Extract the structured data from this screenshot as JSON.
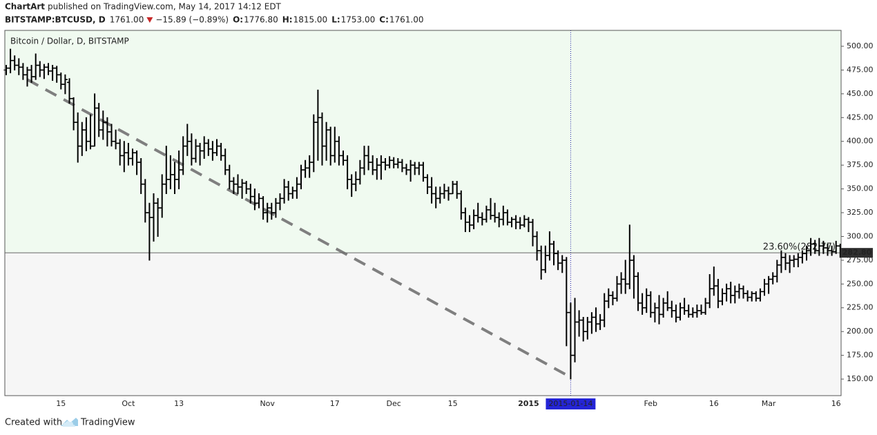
{
  "header": {
    "author": "ChartArt",
    "published": "published on TradingView.com, May 14, 2017 14:12 EDT",
    "symbol": "BITSTAMP:BTCUSD, D",
    "last": "1761.00",
    "change": "−15.89 (−0.89%)",
    "quote": [
      [
        "O:",
        "1776.80"
      ],
      [
        "H:",
        "1815.00"
      ],
      [
        "L:",
        "1753.00"
      ],
      [
        "C:",
        "1761.00"
      ]
    ]
  },
  "footer": {
    "created": "Created with",
    "brand": "TradingView"
  },
  "chart_data": {
    "type": "ohlc",
    "title": "Bitcoin / Dollar, D, BITSTAMP",
    "color": "#000000",
    "up_area_color": "#f0faf0",
    "down_area_color": "#f6f6f6",
    "ylim": [
      132.6,
      516.7
    ],
    "yticks": [
      {
        "value": 150,
        "label": "150.00"
      },
      {
        "value": 175,
        "label": "175.00"
      },
      {
        "value": 200,
        "label": "200.00"
      },
      {
        "value": 225,
        "label": "225.00"
      },
      {
        "value": 250,
        "label": "250.00"
      },
      {
        "value": 275,
        "label": "275.00"
      },
      {
        "value": 300,
        "label": "300.00"
      },
      {
        "value": 325,
        "label": "325.00"
      },
      {
        "value": 350,
        "label": "350.00"
      },
      {
        "value": 375,
        "label": "375.00"
      },
      {
        "value": 400,
        "label": "400.00"
      },
      {
        "value": 425,
        "label": "425.00"
      },
      {
        "value": 450,
        "label": "450.00"
      },
      {
        "value": 475,
        "label": "475.00"
      },
      {
        "value": 500,
        "label": "500.00"
      }
    ],
    "last_price": {
      "value": 282.8,
      "label": "282.80"
    },
    "annotation": "23.60%(282.77)",
    "trendline": {
      "x": [
        5,
        134
      ],
      "y": [
        465,
        152
      ]
    },
    "categories": [
      null,
      null,
      null,
      null,
      null,
      null,
      null,
      null,
      null,
      null,
      null,
      null,
      null,
      "15",
      null,
      null,
      null,
      null,
      null,
      null,
      null,
      null,
      null,
      null,
      null,
      null,
      null,
      null,
      null,
      "Oct",
      null,
      null,
      null,
      null,
      null,
      null,
      null,
      null,
      null,
      null,
      null,
      "13",
      null,
      null,
      null,
      null,
      null,
      null,
      null,
      null,
      null,
      null,
      null,
      null,
      null,
      null,
      null,
      null,
      null,
      null,
      null,
      null,
      "Nov",
      null,
      null,
      null,
      null,
      null,
      null,
      null,
      null,
      null,
      null,
      null,
      null,
      null,
      null,
      null,
      "17",
      null,
      null,
      null,
      null,
      null,
      null,
      null,
      null,
      null,
      null,
      null,
      null,
      null,
      "Dec",
      null,
      null,
      null,
      null,
      null,
      null,
      null,
      null,
      null,
      null,
      null,
      null,
      null,
      "15",
      null,
      null,
      null,
      null,
      null,
      null,
      null,
      null,
      null,
      null,
      null,
      null,
      null,
      null,
      null,
      null,
      null,
      "2015",
      null,
      null,
      null,
      null,
      null,
      null,
      null,
      null,
      null,
      "2015-01-14",
      null,
      null,
      null,
      null,
      null,
      null,
      null,
      null,
      null,
      null,
      null,
      null,
      null,
      null,
      null,
      null,
      null,
      null,
      "Feb",
      null,
      null,
      null,
      null,
      null,
      null,
      null,
      null,
      null,
      null,
      null,
      null,
      null,
      null,
      "16",
      null,
      null,
      null,
      null,
      null,
      null,
      null,
      null,
      null,
      null,
      null,
      null,
      "Mar",
      null,
      null,
      null,
      null,
      null,
      null,
      null,
      null,
      null,
      null,
      null,
      null,
      null,
      null,
      null,
      "16",
      null
    ],
    "open": [
      475,
      477,
      485,
      480,
      478,
      470,
      475,
      468,
      480,
      475,
      478,
      474,
      477,
      470,
      460,
      462,
      445,
      420,
      395,
      412,
      400,
      395,
      435,
      412,
      420,
      410,
      400,
      398,
      385,
      388,
      382,
      388,
      378,
      355,
      325,
      320,
      335,
      330,
      355,
      360,
      365,
      360,
      370,
      395,
      400,
      382,
      395,
      390,
      398,
      392,
      388,
      395,
      385,
      370,
      358,
      355,
      352,
      356,
      350,
      342,
      335,
      340,
      325,
      330,
      325,
      335,
      340,
      352,
      345,
      348,
      355,
      370,
      372,
      378,
      420,
      425,
      395,
      412,
      385,
      400,
      385,
      380,
      360,
      355,
      360,
      372,
      385,
      378,
      370,
      375,
      378,
      375,
      380,
      376,
      378,
      372,
      370,
      375,
      372,
      375,
      362,
      352,
      345,
      340,
      345,
      348,
      345,
      355,
      345,
      325,
      315,
      312,
      322,
      320,
      318,
      328,
      322,
      320,
      318,
      325,
      315,
      318,
      315,
      312,
      318,
      315,
      300,
      285,
      265,
      280,
      292,
      282,
      272,
      275,
      220,
      175,
      210,
      212,
      200,
      210,
      215,
      208,
      212,
      232,
      238,
      235,
      250,
      255,
      250,
      275,
      258,
      230,
      225,
      238,
      220,
      225,
      218,
      230,
      225,
      222,
      215,
      225,
      222,
      218,
      220,
      222,
      220,
      230,
      245,
      248,
      232,
      240,
      245,
      238,
      242,
      245,
      240,
      236,
      240,
      235,
      242,
      250,
      255,
      258,
      270,
      278,
      272,
      275,
      276,
      278,
      282,
      285,
      292,
      285,
      290,
      288,
      285,
      284,
      290
    ],
    "high": [
      480,
      497,
      490,
      487,
      482,
      478,
      480,
      492,
      484,
      481,
      482,
      480,
      479,
      472,
      470,
      466,
      446,
      430,
      420,
      425,
      428,
      450,
      440,
      432,
      425,
      418,
      412,
      402,
      400,
      398,
      392,
      390,
      382,
      360,
      335,
      345,
      340,
      365,
      395,
      385,
      378,
      390,
      405,
      418,
      408,
      402,
      398,
      405,
      402,
      400,
      402,
      398,
      392,
      375,
      362,
      365,
      360,
      358,
      355,
      350,
      345,
      342,
      335,
      335,
      340,
      345,
      360,
      358,
      352,
      362,
      375,
      380,
      385,
      428,
      454,
      430,
      420,
      415,
      415,
      405,
      390,
      385,
      365,
      368,
      380,
      395,
      395,
      385,
      382,
      385,
      382,
      384,
      383,
      382,
      381,
      376,
      380,
      378,
      378,
      378,
      365,
      362,
      352,
      352,
      355,
      352,
      358,
      358,
      348,
      330,
      322,
      328,
      335,
      325,
      332,
      340,
      335,
      325,
      332,
      328,
      320,
      322,
      320,
      322,
      320,
      318,
      305,
      290,
      290,
      305,
      295,
      285,
      280,
      278,
      230,
      235,
      222,
      215,
      215,
      220,
      225,
      218,
      240,
      245,
      242,
      258,
      262,
      275,
      312,
      280,
      262,
      240,
      245,
      242,
      230,
      238,
      235,
      242,
      232,
      228,
      230,
      235,
      228,
      225,
      228,
      228,
      235,
      260,
      268,
      255,
      245,
      250,
      252,
      248,
      250,
      248,
      243,
      242,
      242,
      245,
      255,
      258,
      262,
      275,
      285,
      282,
      280,
      280,
      282,
      285,
      290,
      298,
      296,
      298,
      295,
      292,
      290,
      295,
      292
    ],
    "low": [
      470,
      472,
      475,
      470,
      465,
      458,
      462,
      465,
      468,
      466,
      470,
      464,
      462,
      455,
      450,
      440,
      412,
      378,
      385,
      390,
      392,
      395,
      405,
      402,
      395,
      395,
      392,
      375,
      368,
      375,
      375,
      365,
      345,
      315,
      275,
      295,
      300,
      320,
      345,
      350,
      345,
      350,
      365,
      385,
      375,
      378,
      375,
      382,
      385,
      380,
      385,
      380,
      365,
      350,
      345,
      345,
      340,
      345,
      335,
      328,
      330,
      318,
      315,
      318,
      320,
      328,
      335,
      338,
      340,
      340,
      350,
      362,
      362,
      368,
      380,
      375,
      380,
      375,
      378,
      375,
      375,
      350,
      342,
      348,
      355,
      365,
      370,
      365,
      360,
      360,
      370,
      372,
      372,
      372,
      368,
      365,
      358,
      365,
      365,
      358,
      345,
      335,
      330,
      335,
      340,
      338,
      345,
      340,
      318,
      305,
      305,
      308,
      315,
      312,
      315,
      318,
      315,
      310,
      312,
      312,
      310,
      308,
      308,
      310,
      305,
      290,
      275,
      255,
      262,
      275,
      270,
      265,
      262,
      185,
      150,
      168,
      195,
      190,
      192,
      198,
      200,
      202,
      205,
      225,
      228,
      232,
      240,
      240,
      245,
      235,
      222,
      218,
      220,
      215,
      210,
      208,
      215,
      222,
      215,
      210,
      212,
      218,
      215,
      215,
      215,
      218,
      218,
      225,
      238,
      225,
      228,
      232,
      230,
      230,
      235,
      235,
      232,
      232,
      232,
      232,
      238,
      240,
      250,
      252,
      262,
      265,
      262,
      268,
      268,
      272,
      275,
      280,
      282,
      280,
      282,
      280,
      280,
      282,
      278
    ],
    "close": [
      477,
      485,
      480,
      478,
      470,
      475,
      468,
      480,
      475,
      478,
      474,
      477,
      470,
      460,
      465,
      445,
      420,
      395,
      412,
      400,
      395,
      435,
      412,
      420,
      410,
      400,
      398,
      385,
      388,
      382,
      388,
      378,
      355,
      325,
      320,
      335,
      330,
      355,
      360,
      365,
      360,
      370,
      395,
      400,
      382,
      395,
      390,
      398,
      392,
      388,
      395,
      385,
      370,
      358,
      355,
      352,
      356,
      350,
      342,
      335,
      340,
      325,
      330,
      325,
      335,
      340,
      352,
      345,
      348,
      355,
      370,
      372,
      378,
      420,
      425,
      395,
      412,
      385,
      400,
      385,
      380,
      360,
      355,
      360,
      372,
      385,
      378,
      370,
      375,
      378,
      375,
      380,
      376,
      378,
      372,
      370,
      375,
      372,
      375,
      362,
      352,
      345,
      340,
      345,
      348,
      345,
      355,
      345,
      325,
      315,
      312,
      322,
      320,
      318,
      328,
      322,
      320,
      318,
      325,
      315,
      318,
      315,
      312,
      318,
      315,
      300,
      285,
      265,
      280,
      292,
      282,
      272,
      275,
      220,
      175,
      210,
      212,
      200,
      210,
      215,
      208,
      212,
      232,
      238,
      235,
      250,
      255,
      250,
      275,
      258,
      230,
      225,
      238,
      220,
      225,
      218,
      230,
      225,
      222,
      215,
      225,
      222,
      218,
      220,
      222,
      220,
      230,
      245,
      248,
      232,
      240,
      245,
      238,
      242,
      245,
      240,
      236,
      240,
      235,
      242,
      250,
      255,
      258,
      270,
      278,
      272,
      275,
      276,
      278,
      282,
      285,
      292,
      285,
      290,
      288,
      285,
      284,
      290,
      282.8
    ]
  }
}
